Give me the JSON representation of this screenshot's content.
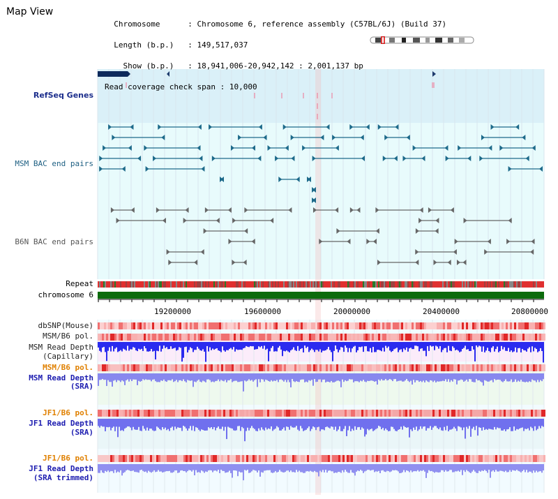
{
  "panel": {
    "title": "Map View"
  },
  "info": {
    "chromosome_key": "Chromosome",
    "chromosome_value": "Chromosome 6, reference assembly (C57BL/6J) (Build 37)",
    "length_key": "Length (b.p.)",
    "length_value": "149,517,037",
    "show_key": "Show (b.p.)",
    "show_value": "18,941,006-20,942,142 : 2,001,137 bp",
    "read_span_key": "Read coverage check span",
    "read_span_value": "10,000",
    "separator": ":"
  },
  "tracks": {
    "refseq": "RefSeq Genes",
    "msm_bac": "MSM BAC end pairs",
    "b6n_bac": "B6N BAC end pairs",
    "repeat": "Repeat",
    "chromosome": "chromosome 6",
    "dbsnp": "dbSNP(Mouse)",
    "msm_b6_pol_1": "MSM/B6 pol.",
    "msm_read_depth_cap_1": "MSM Read Depth",
    "msm_read_depth_cap_2": "(Capillary)",
    "msm_b6_pol_2": "MSM/B6 pol.",
    "msm_read_depth_sra_1": "MSM Read Depth",
    "msm_read_depth_sra_2": "(SRA)",
    "jf1_b6_pol_1": "JF1/B6 pol.",
    "jf1_read_depth_sra_1": "JF1 Read Depth",
    "jf1_read_depth_sra_2": "(SRA)",
    "jf1_b6_pol_2": "JF1/B6 pol.",
    "jf1_read_depth_trim_1": "JF1 Read Depth",
    "jf1_read_depth_trim_2": "(SRA trimmed)"
  },
  "axis": {
    "ticks": [
      "19200000",
      "19600000",
      "20000000",
      "20400000",
      "20800000"
    ]
  },
  "colors": {
    "refseq_bg": "#daf0f8",
    "msm_bg": "#e8fbfc",
    "msm_feature": "#1d6a8a",
    "b6n_feature": "#666666",
    "chromosome_bar": "#0c6b0c",
    "repeat_red": "#e03030",
    "depth_blue": "#2b2bef",
    "depth_light": "#8888ee",
    "pol_pink": "#f5a0a0",
    "highlight": "#f4c0c0"
  },
  "icons": {
    "ideogram": "chromosome-ideogram-icon"
  }
}
